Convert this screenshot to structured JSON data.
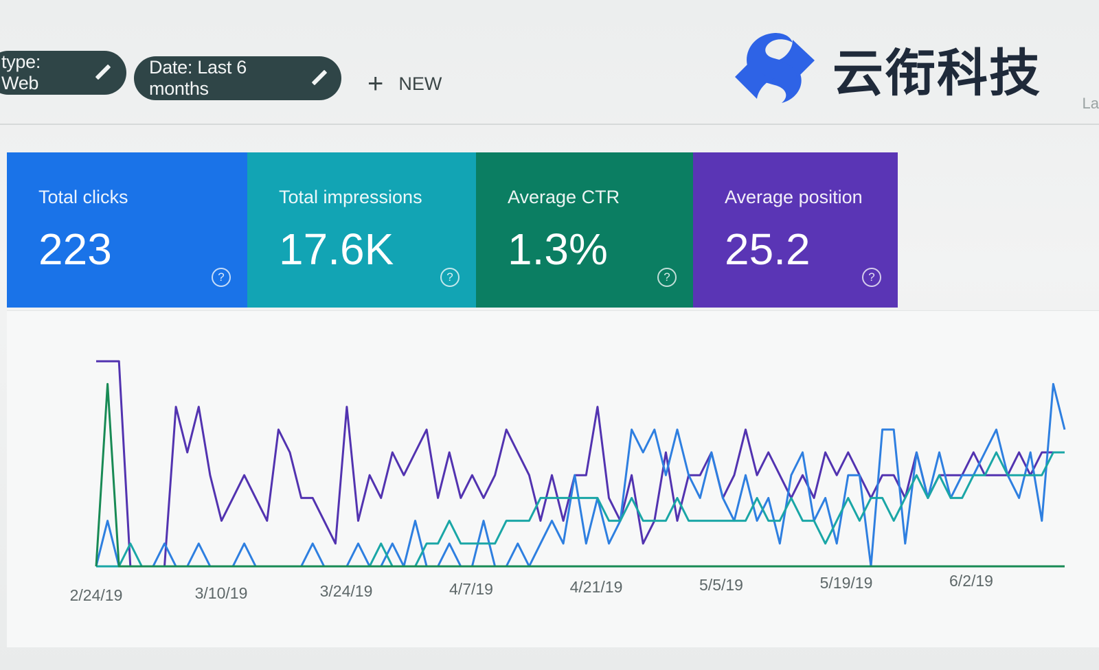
{
  "filters": {
    "type_chip": "type: Web",
    "date_chip": "Date: Last 6 months",
    "new_label": "NEW"
  },
  "logo": {
    "text": "云衔科技"
  },
  "cut_text": "La",
  "metrics": [
    {
      "label": "Total clicks",
      "value": "223",
      "color": "#1a73e8"
    },
    {
      "label": "Total impressions",
      "value": "17.6K",
      "color": "#12a4b4"
    },
    {
      "label": "Average CTR",
      "value": "1.3%",
      "color": "#0b7e62"
    },
    {
      "label": "Average position",
      "value": "25.2",
      "color": "#5a35b5"
    }
  ],
  "chart_data": {
    "type": "line",
    "x_tick_labels": [
      "2/24/19",
      "3/10/19",
      "3/24/19",
      "4/7/19",
      "4/21/19",
      "5/5/19",
      "5/19/19",
      "6/2/19"
    ],
    "series": [
      {
        "color": "#5233b0",
        "values": [
          9,
          9,
          9,
          0,
          0,
          0,
          0,
          7,
          5,
          7,
          4,
          2,
          3,
          4,
          3,
          2,
          6,
          5,
          3,
          3,
          2,
          1,
          7,
          2,
          4,
          3,
          5,
          4,
          5,
          6,
          3,
          5,
          3,
          4,
          3,
          4,
          6,
          5,
          4,
          2,
          4,
          2,
          4,
          4,
          7,
          3,
          2,
          4,
          1,
          2,
          5,
          2,
          4,
          4,
          5,
          3,
          4,
          6,
          4,
          5,
          4,
          3,
          4,
          3,
          5,
          4,
          5,
          4,
          3,
          4,
          4,
          3,
          5,
          3,
          4,
          4,
          4,
          5,
          4,
          4,
          4,
          5,
          4,
          5,
          5,
          5
        ]
      },
      {
        "color": "#2e7fe0",
        "values": [
          0,
          2,
          0,
          0,
          0,
          0,
          1,
          0,
          0,
          1,
          0,
          0,
          0,
          1,
          0,
          0,
          0,
          0,
          0,
          1,
          0,
          0,
          0,
          1,
          0,
          0,
          1,
          0,
          2,
          0,
          0,
          1,
          0,
          0,
          2,
          0,
          0,
          1,
          0,
          1,
          2,
          1,
          4,
          1,
          3,
          1,
          2,
          6,
          5,
          6,
          4,
          6,
          4,
          3,
          5,
          3,
          2,
          4,
          2,
          3,
          1,
          4,
          5,
          2,
          3,
          1,
          4,
          4,
          0,
          6,
          6,
          1,
          5,
          3,
          5,
          3,
          4,
          4,
          5,
          6,
          4,
          3,
          5,
          2,
          8,
          6
        ]
      },
      {
        "color": "#1aa6a6",
        "values": [
          0,
          0,
          0,
          1,
          0,
          0,
          0,
          0,
          0,
          0,
          0,
          0,
          0,
          0,
          0,
          0,
          0,
          0,
          0,
          0,
          0,
          0,
          0,
          0,
          0,
          1,
          0,
          0,
          0,
          1,
          1,
          2,
          1,
          1,
          1,
          1,
          2,
          2,
          2,
          3,
          3,
          3,
          3,
          3,
          3,
          2,
          2,
          3,
          2,
          2,
          2,
          3,
          2,
          2,
          2,
          2,
          2,
          2,
          3,
          2,
          2,
          3,
          2,
          2,
          1,
          2,
          3,
          2,
          3,
          3,
          2,
          3,
          4,
          3,
          4,
          3,
          3,
          4,
          4,
          5,
          4,
          4,
          4,
          4,
          5,
          5
        ]
      },
      {
        "color": "#188a55",
        "values": [
          0,
          8,
          0,
          0,
          0,
          0,
          0,
          0,
          0,
          0,
          0,
          0,
          0,
          0,
          0,
          0,
          0,
          0,
          0,
          0,
          0,
          0,
          0,
          0,
          0,
          0,
          0,
          0,
          0,
          0,
          0,
          0,
          0,
          0,
          0,
          0,
          0,
          0,
          0,
          0,
          0,
          0,
          0,
          0,
          0,
          0,
          0,
          0,
          0,
          0,
          0,
          0,
          0,
          0,
          0,
          0,
          0,
          0,
          0,
          0,
          0,
          0,
          0,
          0,
          0,
          0,
          0,
          0,
          0,
          0,
          0,
          0,
          0,
          0,
          0,
          0,
          0,
          0,
          0,
          0,
          0,
          0,
          0,
          0,
          0,
          0
        ]
      }
    ]
  }
}
